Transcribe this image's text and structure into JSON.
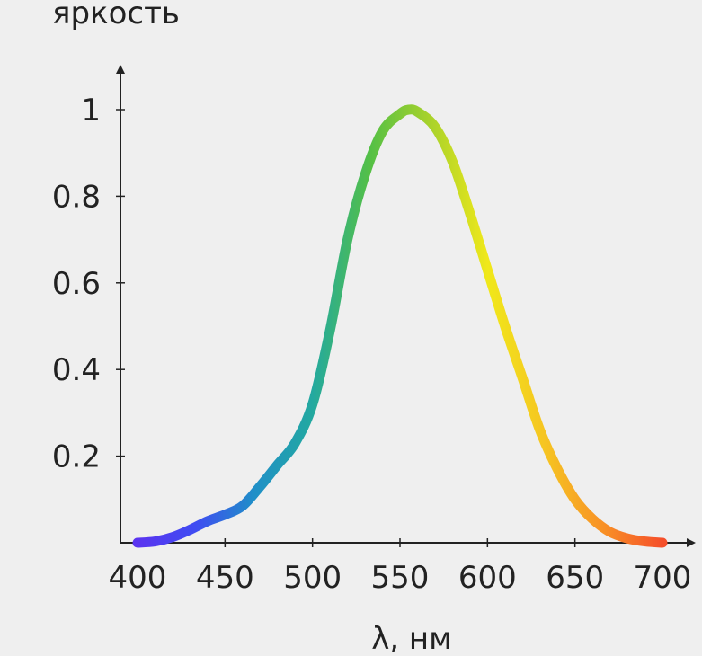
{
  "chart_data": {
    "type": "line",
    "ylabel": "яркость",
    "xlabel": "λ, нм",
    "xlim": [
      400,
      700
    ],
    "ylim": [
      0,
      1.05
    ],
    "xticks": [
      400,
      450,
      500,
      550,
      600,
      650,
      700
    ],
    "xtick_labels": [
      "400",
      "450",
      "500",
      "550",
      "600",
      "650",
      "700"
    ],
    "yticks": [
      0.2,
      0.4,
      0.6,
      0.8,
      1.0
    ],
    "ytick_labels": [
      "0.2",
      "0.4",
      "0.6",
      "0.8",
      "1"
    ],
    "grid": false,
    "legend": "none",
    "series": [
      {
        "color_mode": "spectral-gradient",
        "x": [
          400,
          410,
          420,
          430,
          440,
          450,
          460,
          470,
          480,
          490,
          500,
          510,
          520,
          530,
          540,
          550,
          555,
          560,
          570,
          580,
          590,
          600,
          610,
          620,
          630,
          640,
          650,
          660,
          670,
          680,
          690,
          700
        ],
        "y": [
          0.0,
          0.003,
          0.013,
          0.03,
          0.05,
          0.065,
          0.085,
          0.13,
          0.18,
          0.23,
          0.32,
          0.49,
          0.7,
          0.85,
          0.95,
          0.99,
          1.0,
          0.995,
          0.96,
          0.88,
          0.76,
          0.63,
          0.5,
          0.38,
          0.26,
          0.17,
          0.1,
          0.055,
          0.025,
          0.01,
          0.003,
          0.0
        ]
      }
    ],
    "gradient_colors": [
      "#5a34f0",
      "#3f4cf2",
      "#1f8fc8",
      "#23a9a0",
      "#55c045",
      "#a8d22b",
      "#f0e81a",
      "#f6c422",
      "#f89026",
      "#f54f2a"
    ]
  }
}
